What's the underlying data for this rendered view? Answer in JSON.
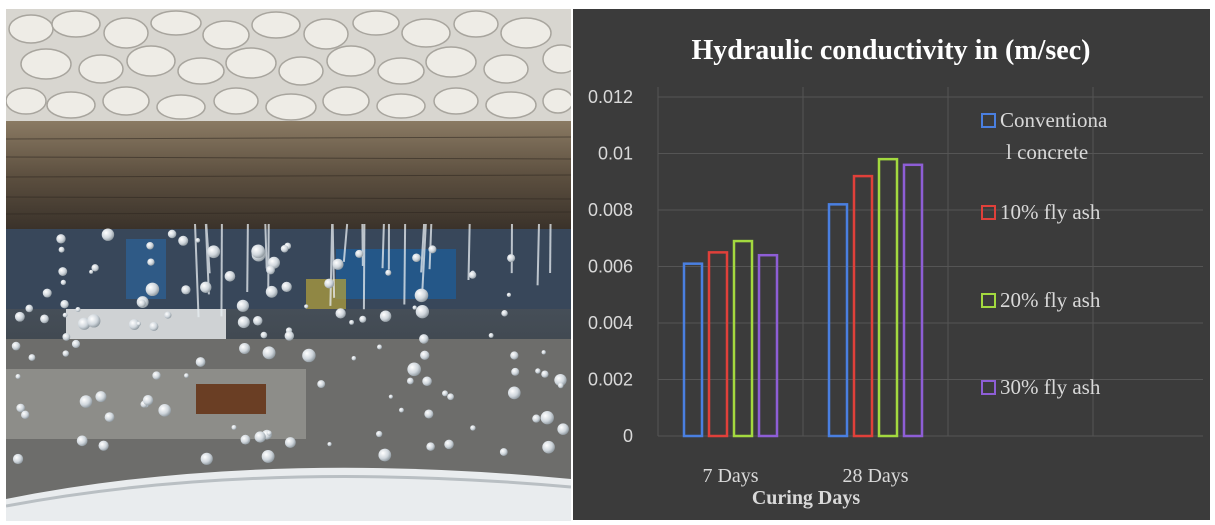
{
  "chart_data": {
    "type": "bar",
    "title": "Hydraulic conductivity in (m/sec)",
    "xlabel": "Curing Days",
    "ylabel": "",
    "categories": [
      "7 Days",
      "28 Days"
    ],
    "y_ticks": [
      "0",
      "0.002",
      "0.004",
      "0.006",
      "0.008",
      "0.01",
      "0.012"
    ],
    "ylim": [
      0,
      0.012
    ],
    "grid": true,
    "legend_position": "right",
    "series": [
      {
        "name": "Conventional concrete",
        "legend_lines": [
          "Conventiona",
          "l concrete"
        ],
        "color": "#4a7fe0",
        "values": [
          0.0061,
          0.0082
        ]
      },
      {
        "name": "10% fly ash",
        "legend_lines": [
          "10% fly ash"
        ],
        "color": "#e0403a",
        "values": [
          0.0065,
          0.0092
        ]
      },
      {
        "name": "20% fly ash",
        "legend_lines": [
          "20% fly ash"
        ],
        "color": "#a3d93f",
        "values": [
          0.0069,
          0.0098
        ]
      },
      {
        "name": "30% fly ash",
        "legend_lines": [
          "30% fly ash"
        ],
        "color": "#8e5ed6",
        "values": [
          0.0064,
          0.0096
        ]
      }
    ]
  }
}
